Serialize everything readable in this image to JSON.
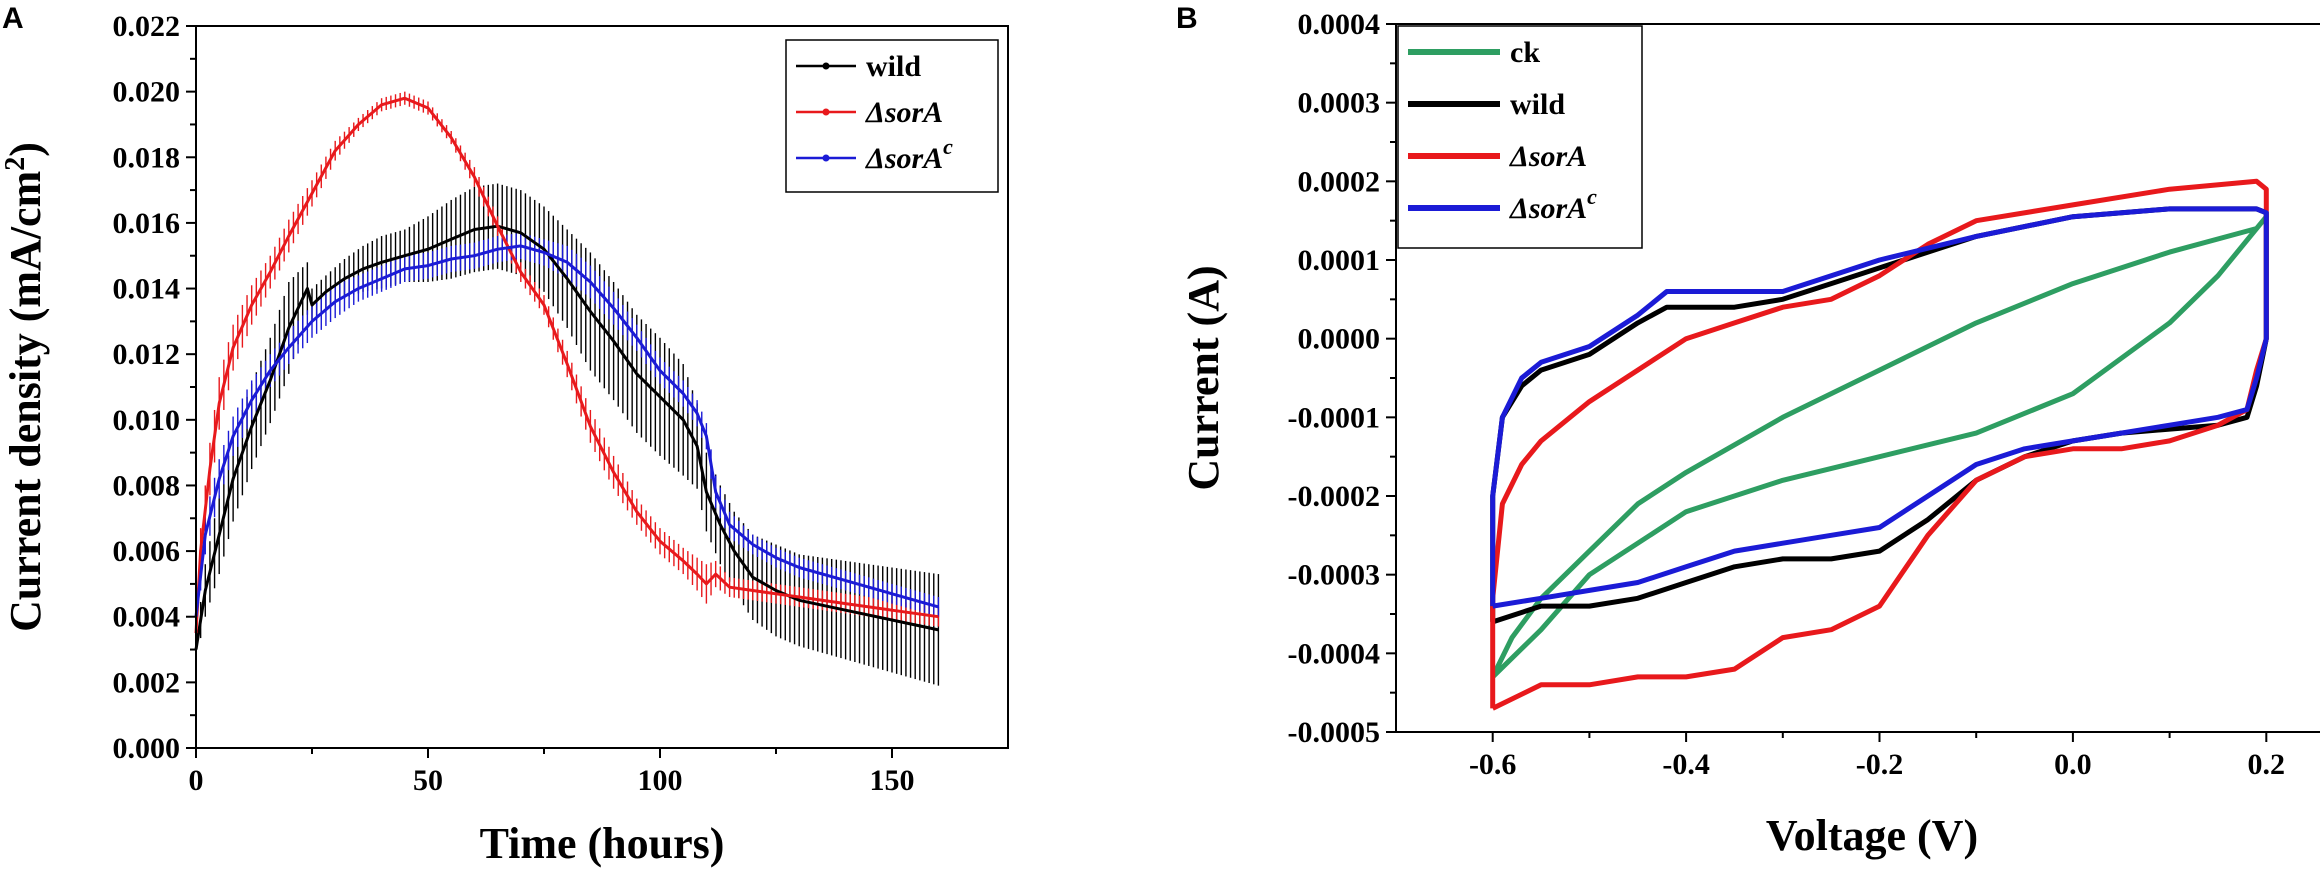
{
  "chart_data": [
    {
      "panel": "A",
      "type": "line",
      "xlabel": "Time (hours)",
      "ylabel_main": "Current density (mA/cm",
      "ylabel_sup": "2",
      "ylabel_end": ")",
      "xlim": [
        0,
        175
      ],
      "ylim": [
        0,
        0.022
      ],
      "xticks": [
        0,
        50,
        100,
        150
      ],
      "xtick_labels": [
        "0",
        "50",
        "100",
        "150"
      ],
      "yticks": [
        0,
        0.002,
        0.004,
        0.006,
        0.008,
        0.01,
        0.012,
        0.014,
        0.016,
        0.018,
        0.02,
        0.022
      ],
      "ytick_labels": [
        "0.000",
        "0.002",
        "0.004",
        "0.006",
        "0.008",
        "0.010",
        "0.012",
        "0.014",
        "0.016",
        "0.018",
        "0.020",
        "0.022"
      ],
      "legend_position": "top-right",
      "error_bars": true,
      "series": [
        {
          "name": "wild",
          "name_prefix": "",
          "name_sup": "",
          "italic": false,
          "color": "#000000",
          "x": [
            0,
            2,
            5,
            8,
            12,
            16,
            20,
            24,
            25,
            28,
            32,
            36,
            40,
            45,
            50,
            55,
            60,
            65,
            70,
            75,
            80,
            85,
            90,
            95,
            100,
            105,
            108,
            110,
            113,
            116,
            120,
            125,
            130,
            140,
            150,
            160
          ],
          "y": [
            0.003,
            0.0048,
            0.0065,
            0.0082,
            0.0098,
            0.0112,
            0.0128,
            0.014,
            0.0135,
            0.0139,
            0.0143,
            0.0146,
            0.0148,
            0.015,
            0.0152,
            0.0155,
            0.0158,
            0.0159,
            0.0157,
            0.0152,
            0.0143,
            0.0133,
            0.0124,
            0.0114,
            0.0107,
            0.01,
            0.0092,
            0.0078,
            0.0068,
            0.006,
            0.0052,
            0.0048,
            0.0045,
            0.0042,
            0.0039,
            0.0036
          ],
          "err": [
            0.0003,
            0.0008,
            0.0012,
            0.0013,
            0.0013,
            0.0013,
            0.0014,
            0.0008,
            0.0005,
            0.0005,
            0.0006,
            0.0007,
            0.0008,
            0.0008,
            0.001,
            0.0012,
            0.0013,
            0.0013,
            0.0013,
            0.0013,
            0.0015,
            0.0018,
            0.0018,
            0.0018,
            0.0018,
            0.0017,
            0.0013,
            0.0012,
            0.0012,
            0.0012,
            0.0013,
            0.0014,
            0.0014,
            0.0015,
            0.0016,
            0.0017
          ]
        },
        {
          "name": "sorA",
          "name_prefix": "Δ",
          "name_sup": "",
          "italic": true,
          "color": "#e8191c",
          "x": [
            0,
            1,
            3,
            5,
            8,
            12,
            16,
            20,
            25,
            30,
            35,
            40,
            45,
            50,
            55,
            60,
            65,
            70,
            75,
            80,
            85,
            90,
            95,
            100,
            105,
            108,
            110,
            112,
            115,
            120,
            125,
            130,
            140,
            150,
            160
          ],
          "y": [
            0.0035,
            0.006,
            0.0085,
            0.0105,
            0.0122,
            0.0135,
            0.0145,
            0.0156,
            0.0169,
            0.0182,
            0.019,
            0.0196,
            0.0198,
            0.0195,
            0.0186,
            0.0174,
            0.0159,
            0.0145,
            0.0135,
            0.0117,
            0.0098,
            0.0084,
            0.0072,
            0.0063,
            0.0057,
            0.0053,
            0.005,
            0.0053,
            0.0049,
            0.0048,
            0.0047,
            0.0046,
            0.0044,
            0.0042,
            0.004
          ],
          "err": [
            0.0003,
            0.0007,
            0.0008,
            0.0008,
            0.0007,
            0.0006,
            0.0005,
            0.0005,
            0.0004,
            0.0003,
            0.0002,
            0.0002,
            0.0002,
            0.0002,
            0.0002,
            0.0003,
            0.0003,
            0.0003,
            0.0003,
            0.0004,
            0.0005,
            0.0005,
            0.0004,
            0.0004,
            0.0004,
            0.0005,
            0.0006,
            0.0004,
            0.0003,
            0.0003,
            0.0003,
            0.0003,
            0.0003,
            0.0003,
            0.0003
          ]
        },
        {
          "name": "sorA",
          "name_prefix": "Δ",
          "name_sup": "c",
          "italic": true,
          "color": "#1b1bd6",
          "x": [
            0,
            2,
            5,
            8,
            12,
            16,
            20,
            25,
            30,
            35,
            40,
            45,
            50,
            55,
            60,
            65,
            70,
            75,
            80,
            85,
            90,
            95,
            100,
            105,
            108,
            110,
            112,
            115,
            120,
            125,
            130,
            140,
            150,
            160
          ],
          "y": [
            0.004,
            0.0065,
            0.0082,
            0.0095,
            0.0106,
            0.0115,
            0.0122,
            0.013,
            0.0136,
            0.014,
            0.0143,
            0.0146,
            0.0147,
            0.0149,
            0.015,
            0.0152,
            0.0153,
            0.0151,
            0.0148,
            0.0142,
            0.0134,
            0.0125,
            0.0115,
            0.0108,
            0.0102,
            0.0095,
            0.0078,
            0.0068,
            0.0062,
            0.0058,
            0.0055,
            0.0051,
            0.0047,
            0.0043
          ],
          "err": [
            0.0003,
            0.0006,
            0.0006,
            0.0006,
            0.0006,
            0.0005,
            0.0005,
            0.0005,
            0.0005,
            0.0004,
            0.0004,
            0.0004,
            0.0004,
            0.0004,
            0.0004,
            0.0004,
            0.0004,
            0.0004,
            0.0005,
            0.0005,
            0.0005,
            0.0004,
            0.0004,
            0.0004,
            0.0004,
            0.0004,
            0.0005,
            0.0004,
            0.0003,
            0.0003,
            0.0003,
            0.0003,
            0.0003,
            0.0003
          ]
        }
      ]
    },
    {
      "panel": "B",
      "type": "line",
      "xlabel": "Voltage (V)",
      "ylabel": "Current (A)",
      "xlim": [
        -0.7,
        0.27
      ],
      "ylim": [
        -0.0005,
        0.0004
      ],
      "xticks": [
        -0.6,
        -0.4,
        -0.2,
        0.0,
        0.2
      ],
      "xtick_labels": [
        "-0.6",
        "-0.4",
        "-0.2",
        "0.0",
        "0.2"
      ],
      "yticks": [
        -0.0005,
        -0.0004,
        -0.0003,
        -0.0002,
        -0.0001,
        0.0,
        0.0001,
        0.0002,
        0.0003,
        0.0004
      ],
      "ytick_labels": [
        "-0.0005",
        "-0.0004",
        "-0.0003",
        "-0.0002",
        "-0.0001",
        "0.0000",
        "0.0001",
        "0.0002",
        "0.0003",
        "0.0004"
      ],
      "legend_position": "top-left",
      "series": [
        {
          "name": "ck",
          "name_prefix": "",
          "name_sup": "",
          "italic": false,
          "color": "#2e9e62",
          "x": [
            -0.6,
            -0.55,
            -0.5,
            -0.45,
            -0.4,
            -0.3,
            -0.2,
            -0.1,
            0.0,
            0.1,
            0.15,
            0.19,
            0.2,
            0.19,
            0.1,
            0.0,
            -0.1,
            -0.2,
            -0.3,
            -0.4,
            -0.45,
            -0.5,
            -0.55,
            -0.58,
            -0.6
          ],
          "y": [
            -0.00043,
            -0.00037,
            -0.0003,
            -0.00026,
            -0.00022,
            -0.00018,
            -0.00015,
            -0.00012,
            -7e-05,
            2e-05,
            8e-05,
            0.00014,
            0.000155,
            0.00014,
            0.00011,
            7e-05,
            2e-05,
            -4e-05,
            -0.0001,
            -0.00017,
            -0.00021,
            -0.00027,
            -0.00033,
            -0.00038,
            -0.00043
          ]
        },
        {
          "name": "wild",
          "name_prefix": "",
          "name_sup": "",
          "italic": false,
          "color": "#000000",
          "x": [
            -0.6,
            -0.6,
            -0.59,
            -0.57,
            -0.55,
            -0.5,
            -0.45,
            -0.42,
            -0.4,
            -0.35,
            -0.3,
            -0.25,
            -0.2,
            -0.1,
            0.0,
            0.1,
            0.19,
            0.2,
            0.2,
            0.19,
            0.18,
            0.15,
            0.1,
            0.05,
            0.0,
            -0.05,
            -0.1,
            -0.15,
            -0.2,
            -0.25,
            -0.3,
            -0.35,
            -0.4,
            -0.45,
            -0.5,
            -0.55,
            -0.6
          ],
          "y": [
            -0.00036,
            -0.0002,
            -0.0001,
            -6e-05,
            -4e-05,
            -2e-05,
            2e-05,
            4e-05,
            4e-05,
            4e-05,
            5e-05,
            7e-05,
            9e-05,
            0.00013,
            0.000155,
            0.000165,
            0.000165,
            0.00016,
            0.0,
            -6e-05,
            -0.0001,
            -0.00011,
            -0.000115,
            -0.00012,
            -0.00013,
            -0.00015,
            -0.00018,
            -0.00023,
            -0.00027,
            -0.00028,
            -0.00028,
            -0.00029,
            -0.00031,
            -0.00033,
            -0.00034,
            -0.00034,
            -0.00036
          ]
        },
        {
          "name": "sorA",
          "name_prefix": "Δ",
          "name_sup": "",
          "italic": true,
          "color": "#e8191c",
          "x": [
            -0.6,
            -0.6,
            -0.59,
            -0.57,
            -0.55,
            -0.5,
            -0.45,
            -0.4,
            -0.35,
            -0.3,
            -0.25,
            -0.2,
            -0.15,
            -0.1,
            0.0,
            0.1,
            0.19,
            0.2,
            0.2,
            0.19,
            0.18,
            0.15,
            0.1,
            0.05,
            0.0,
            -0.05,
            -0.1,
            -0.15,
            -0.2,
            -0.25,
            -0.3,
            -0.35,
            -0.4,
            -0.45,
            -0.5,
            -0.55,
            -0.6
          ],
          "y": [
            -0.00047,
            -0.00033,
            -0.00021,
            -0.00016,
            -0.00013,
            -8e-05,
            -4e-05,
            0.0,
            2e-05,
            4e-05,
            5e-05,
            8e-05,
            0.00012,
            0.00015,
            0.00017,
            0.00019,
            0.0002,
            0.00019,
            0.0,
            -4e-05,
            -9e-05,
            -0.00011,
            -0.00013,
            -0.00014,
            -0.00014,
            -0.00015,
            -0.00018,
            -0.00025,
            -0.00034,
            -0.00037,
            -0.00038,
            -0.00042,
            -0.00043,
            -0.00043,
            -0.00044,
            -0.00044,
            -0.00047
          ]
        },
        {
          "name": "sorA",
          "name_prefix": "Δ",
          "name_sup": "c",
          "italic": true,
          "color": "#1b1bd6",
          "x": [
            -0.6,
            -0.6,
            -0.59,
            -0.57,
            -0.55,
            -0.5,
            -0.45,
            -0.42,
            -0.4,
            -0.35,
            -0.3,
            -0.25,
            -0.2,
            -0.1,
            0.0,
            0.1,
            0.19,
            0.2,
            0.2,
            0.19,
            0.18,
            0.15,
            0.1,
            0.05,
            0.0,
            -0.05,
            -0.1,
            -0.15,
            -0.2,
            -0.25,
            -0.3,
            -0.35,
            -0.4,
            -0.45,
            -0.5,
            -0.55,
            -0.6
          ],
          "y": [
            -0.00034,
            -0.0002,
            -0.0001,
            -5e-05,
            -3e-05,
            -1e-05,
            3e-05,
            6e-05,
            6e-05,
            6e-05,
            6e-05,
            8e-05,
            0.0001,
            0.00013,
            0.000155,
            0.000165,
            0.000165,
            0.00016,
            0.0,
            -5e-05,
            -9e-05,
            -0.0001,
            -0.00011,
            -0.00012,
            -0.00013,
            -0.00014,
            -0.00016,
            -0.0002,
            -0.00024,
            -0.00025,
            -0.00026,
            -0.00027,
            -0.00029,
            -0.00031,
            -0.00032,
            -0.00033,
            -0.00034
          ]
        }
      ]
    }
  ],
  "panels": {
    "a_label": "A",
    "b_label": "B"
  }
}
